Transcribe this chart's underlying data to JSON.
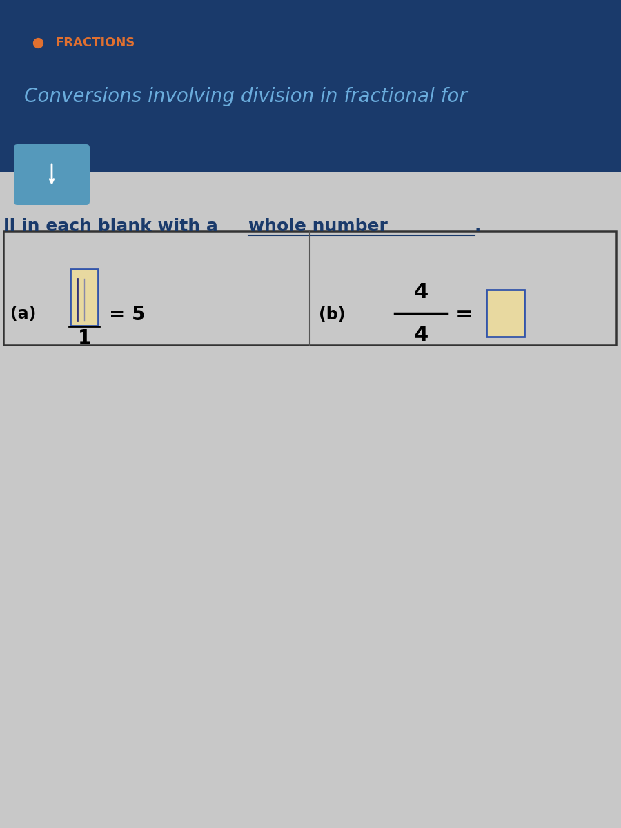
{
  "bg_top_color": "#1a3a6b",
  "bg_body_color": "#c8c8c8",
  "bullet_color": "#e07030",
  "fractions_text": "FRACTIONS",
  "fractions_color": "#e07030",
  "subtitle_text": "Conversions involving division in fractional for",
  "subtitle_color": "#6aacdc",
  "instruction_text1": "ll in each blank with a ",
  "instruction_text2": "whole number",
  "instruction_text3": ".",
  "instruction_color": "#1a3a6b",
  "table_border_color": "#333333",
  "table_bg": "#c8c8c8",
  "divider_color": "#555555",
  "part_a_label": "(a)",
  "part_b_label": "(b)",
  "part_a_denominator": "1",
  "part_a_equals": "= 5",
  "part_b_numerator": "4",
  "part_b_denominator": "4",
  "part_b_equals": "=",
  "dropdown_border_color": "#3355aa",
  "dropdown_fill_color": "#e8d9a0",
  "chevron_bg": "#5599bb",
  "chevron_color": "#ffffff"
}
